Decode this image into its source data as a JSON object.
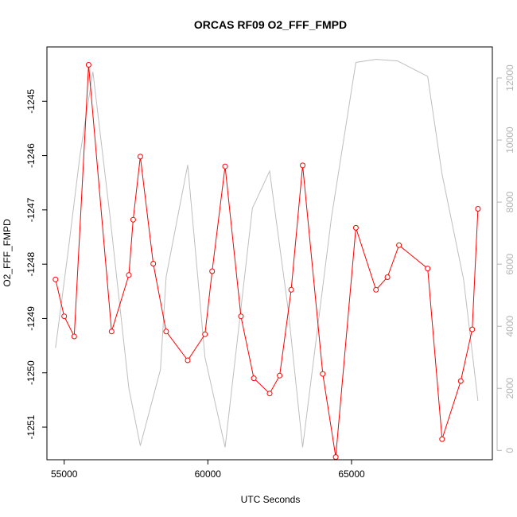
{
  "chart_data": {
    "type": "line",
    "title": "ORCAS RF09 O2_FFF_FMPD",
    "xlabel": "UTC Seconds",
    "ylabel": "O2_FFF_FMPD",
    "xlim": [
      54400,
      69900
    ],
    "ylim": [
      -1251.6,
      -1244.0
    ],
    "y2lim": [
      -300,
      13000
    ],
    "x_ticks": [
      55000,
      60000,
      65000
    ],
    "y_ticks": [
      -1251,
      -1250,
      -1249,
      -1248,
      -1247,
      -1246,
      -1245
    ],
    "y2_ticks": [
      0,
      2000,
      4000,
      6000,
      8000,
      10000,
      12000
    ],
    "grid": false,
    "series": [
      {
        "color": "#ff0000",
        "marker": "open-circle",
        "x": [
          54700,
          55000,
          55350,
          55850,
          56650,
          57250,
          57400,
          57650,
          58100,
          58550,
          59300,
          59900,
          60150,
          60600,
          61150,
          61600,
          62150,
          62500,
          62900,
          63300,
          64000,
          64450,
          65150,
          65850,
          66250,
          66650,
          67650,
          68150,
          68800,
          69200,
          69400
        ],
        "y": [
          -1248.28,
          -1248.96,
          -1249.33,
          -1244.33,
          -1249.24,
          -1248.2,
          -1247.18,
          -1246.02,
          -1247.99,
          -1249.24,
          -1249.77,
          -1249.29,
          -1248.13,
          -1246.2,
          -1248.96,
          -1250.1,
          -1250.38,
          -1250.05,
          -1248.47,
          -1246.18,
          -1250.02,
          -1251.55,
          -1247.33,
          -1248.47,
          -1248.24,
          -1247.65,
          -1248.08,
          -1251.22,
          -1250.15,
          -1249.2,
          -1246.98
        ]
      },
      {
        "color": "#bebebe",
        "axis": "right",
        "x": [
          54700,
          55150,
          55550,
          56000,
          56600,
          57250,
          57650,
          58350,
          58550,
          59300,
          59900,
          60600,
          61550,
          62150,
          62800,
          63300,
          64300,
          65150,
          65850,
          66600,
          67650,
          68150,
          68900,
          69400
        ],
        "y": [
          3300,
          6500,
          9500,
          12200,
          7500,
          2000,
          150,
          2600,
          5600,
          9200,
          3000,
          100,
          7800,
          9000,
          4500,
          100,
          7500,
          12500,
          12600,
          12550,
          12050,
          8900,
          5500,
          1600
        ]
      }
    ]
  }
}
